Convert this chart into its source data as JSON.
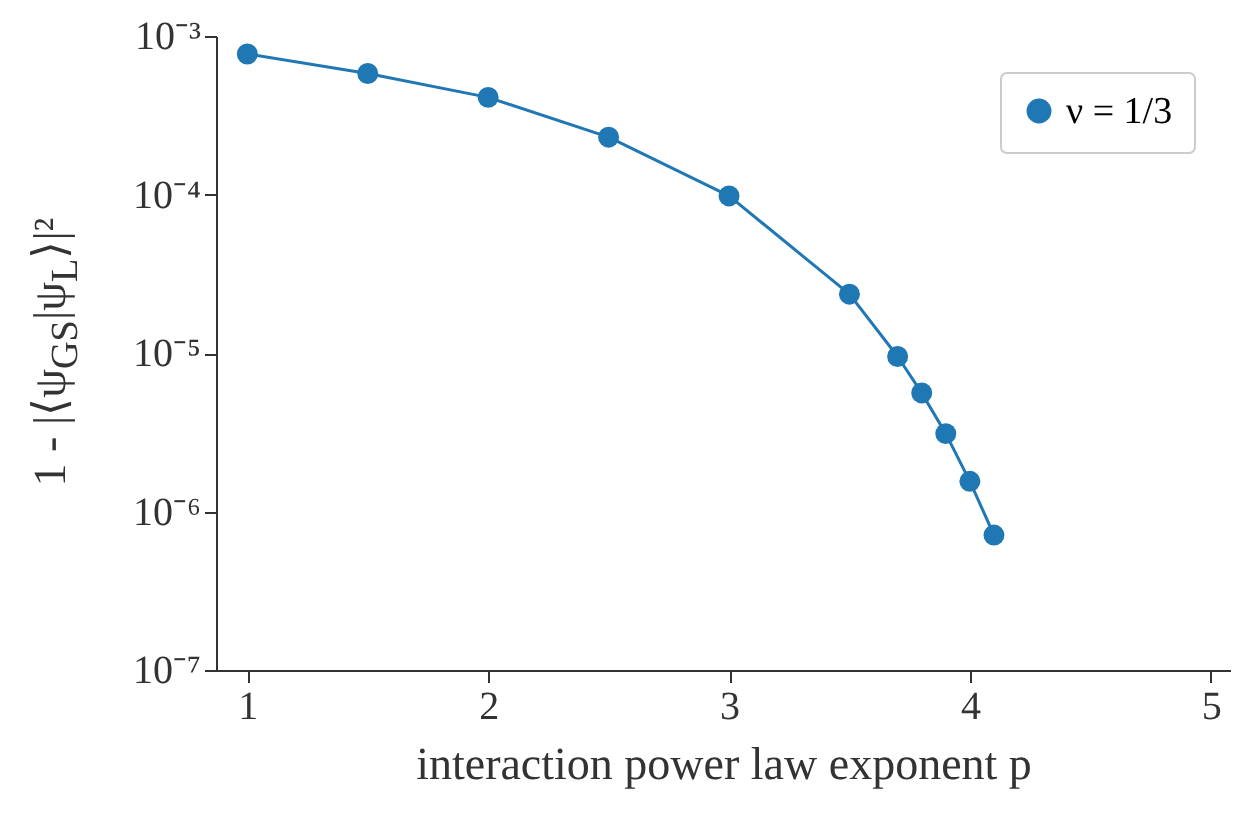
{
  "chart_data": {
    "type": "line",
    "xlabel": "interaction power law exponent p",
    "ylabel": "1 - |⟨ψ$_{GS}$|ψ$_{L}$⟩|²",
    "x": [
      1,
      1.5,
      2,
      2.5,
      3,
      3.5,
      3.7,
      3.8,
      3.9,
      4,
      4.1
    ],
    "series": [
      {
        "name": "ν = 1/3",
        "color": "#1f77b4",
        "values": [
          0.00077,
          0.00058,
          0.00041,
          0.00023,
          9.8e-05,
          2.35e-05,
          9.5e-06,
          5.6e-06,
          3.1e-06,
          1.55e-06,
          7.1e-07
        ]
      }
    ],
    "log": "y",
    "xlim": [
      0.87,
      5.08
    ],
    "xticks": [
      1,
      2,
      3,
      4,
      5
    ],
    "ylim": [
      1e-07,
      0.001
    ],
    "yticks": [
      {
        "value": 1e-07,
        "label": "10⁻⁷"
      },
      {
        "value": 1e-06,
        "label": "10⁻⁶"
      },
      {
        "value": 1e-05,
        "label": "10⁻⁵"
      },
      {
        "value": 0.0001,
        "label": "10⁻⁴"
      },
      {
        "value": 0.001,
        "label": "10⁻³"
      }
    ],
    "grid": false,
    "legend": "top right",
    "marker": "circle",
    "line_style": "solid"
  }
}
